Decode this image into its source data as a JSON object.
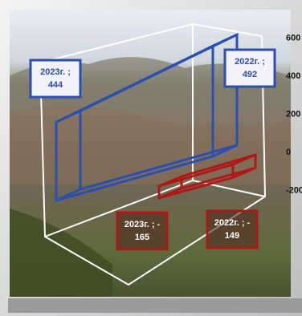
{
  "chart_data": {
    "type": "ribbon3d",
    "series": [
      {
        "color": "#2a4fb0",
        "values": [
          444,
          492
        ],
        "value_labels": [
          [
            "2023г. ;",
            "444"
          ],
          [
            "2022г. ;",
            "492"
          ]
        ]
      },
      {
        "color": "#b01818",
        "values": [
          -165,
          -149
        ],
        "value_labels": [
          [
            "2023г. ; -",
            "165"
          ],
          [
            "2022г. ; -",
            "149"
          ]
        ]
      }
    ],
    "ylim": [
      -200,
      600
    ],
    "yticks": [
      -200,
      0,
      200,
      400,
      600
    ]
  }
}
